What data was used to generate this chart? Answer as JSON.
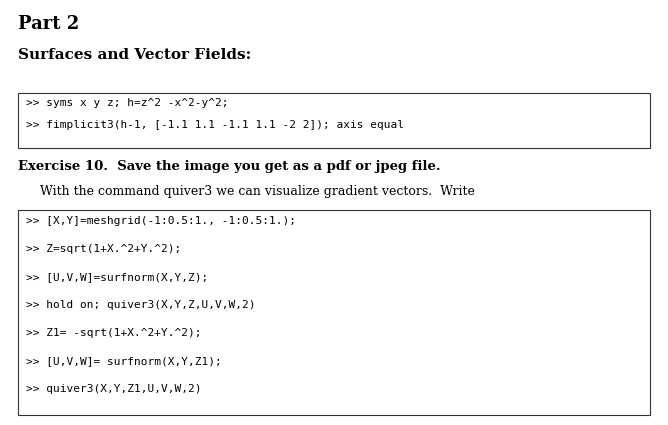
{
  "title": "Part 2",
  "subtitle": "Surfaces and Vector Fields:",
  "code_block_1": [
    ">> syms x y z; h=z^2 -x^2-y^2;",
    ">> fimplicit3(h-1, [-1.1 1.1 -1.1 1.1 -2 2]); axis equal"
  ],
  "exercise_line": "Exercise 10.  Save the image you get as a pdf or jpeg file.",
  "paragraph": "With the command quiver3 we can visualize gradient vectors.  Write",
  "code_block_2": [
    ">> [X,Y]=meshgrid(-1:0.5:1., -1:0.5:1.);",
    ">> Z=sqrt(1+X.^2+Y.^2);",
    ">> [U,V,W]=surfnorm(X,Y,Z);",
    ">> hold on; quiver3(X,Y,Z,U,V,W,2)",
    ">> Z1= -sqrt(1+X.^2+Y.^2);",
    ">> [U,V,W]= surfnorm(X,Y,Z1);",
    ">> quiver3(X,Y,Z1,U,V,W,2)"
  ],
  "bg_color": "#ffffff",
  "text_color": "#000000",
  "code_bg": "#ffffff",
  "code_border": "#333333",
  "title_fontsize": 13,
  "subtitle_fontsize": 11,
  "code_fontsize": 8,
  "exercise_fontsize": 9.5,
  "para_fontsize": 9
}
